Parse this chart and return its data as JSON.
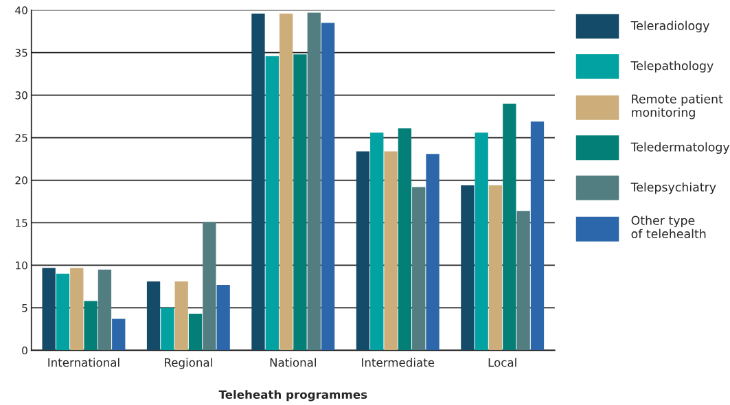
{
  "chart_data": {
    "type": "bar",
    "xlabel": "Teleheath programmes",
    "categories": [
      "International",
      "Regional",
      "National",
      "Intermediate",
      "Local"
    ],
    "series": [
      {
        "name": "Teleradiology",
        "color": "#134b68",
        "values": [
          9.7,
          8.1,
          39.6,
          23.4,
          19.4
        ]
      },
      {
        "name": "Telepathology",
        "color": "#02a2a3",
        "values": [
          9.0,
          5.0,
          34.6,
          25.6,
          25.6
        ]
      },
      {
        "name": "Remote patient\nmonitoring",
        "color": "#cdae7a",
        "values": [
          9.7,
          8.1,
          39.6,
          23.4,
          19.4
        ]
      },
      {
        "name": "Teledermatology",
        "color": "#037f77",
        "values": [
          5.8,
          4.3,
          34.8,
          26.1,
          29.0
        ]
      },
      {
        "name": "Telepsychiatry",
        "color": "#527e82",
        "values": [
          9.5,
          15.1,
          39.7,
          19.2,
          16.4
        ]
      },
      {
        "name": "Other type\nof telehealth",
        "color": "#2b67aa",
        "values": [
          3.7,
          7.7,
          38.5,
          23.1,
          26.9
        ]
      }
    ],
    "ylim": [
      0,
      40
    ],
    "yticks": [
      0,
      5,
      10,
      15,
      20,
      25,
      30,
      35,
      40
    ],
    "grid": "y",
    "legend": "right"
  }
}
